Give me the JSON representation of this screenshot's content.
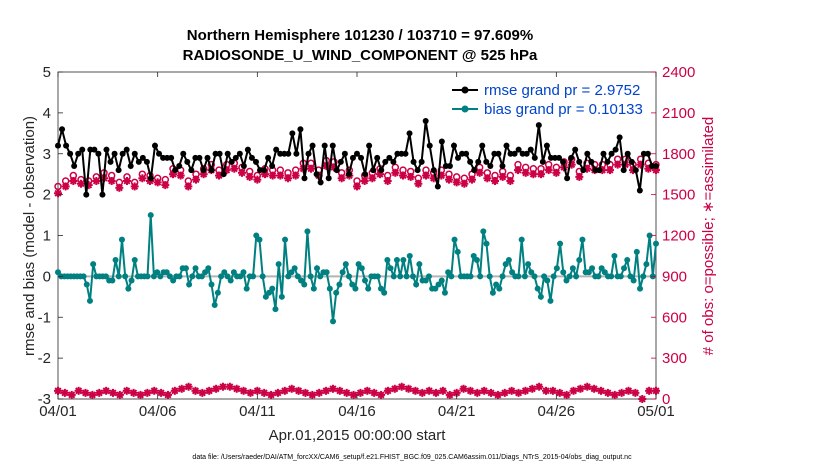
{
  "chart_data": {
    "type": "line",
    "title": "Northern Hemisphere 101230 / 103710 = 97.609%",
    "subtitle": "RADIOSONDE_U_WIND_COMPONENT @ 525 hPa",
    "xlabel": "Apr.01,2015 00:00:00 start",
    "ylabel": "rmse and bias (model - observation)",
    "ylabel_right": "# of obs: o=possible; ∗=assimilated",
    "footer": "data file: /Users/raeder/DAI/ATM_forcXX/CAM6_setup/f.e21.FHIST_BGC.f09_025.CAM6assim.011/Diags_NTrS_2015-04/obs_diag_output.nc",
    "x_ticks": [
      "04/01",
      "04/06",
      "04/11",
      "04/16",
      "04/21",
      "04/26",
      "05/01"
    ],
    "x_range_days": [
      0,
      30
    ],
    "ylim": [
      -3,
      5
    ],
    "y_ticks": [
      "-3",
      "-2",
      "-1",
      "0",
      "1",
      "2",
      "3",
      "4",
      "5"
    ],
    "ylim_right": [
      0,
      2400
    ],
    "y_ticks_right": [
      "0",
      "300",
      "600",
      "900",
      "1200",
      "1500",
      "1800",
      "2100",
      "2400"
    ],
    "grid": false,
    "legend_position": "top-right",
    "colors": {
      "rmse": "#000000",
      "bias": "#008080",
      "obs": "#cc0044",
      "zero_line": "#b3b3b3",
      "legend_text": "#0044cc"
    },
    "series": [
      {
        "name": "rmse",
        "legend": "rmse grand pr = 2.9752",
        "axis": "left",
        "values": [
          3.2,
          3.6,
          3.2,
          3.0,
          2.7,
          3.0,
          3.1,
          2.0,
          3.1,
          3.1,
          3.0,
          2.0,
          3.1,
          2.8,
          3.0,
          2.6,
          3.0,
          3.1,
          2.7,
          3.0,
          2.8,
          2.9,
          2.8,
          2.4,
          3.2,
          3.0,
          2.9,
          2.9,
          2.9,
          2.6,
          2.7,
          3.0,
          2.8,
          2.6,
          2.9,
          2.9,
          2.6,
          2.9,
          2.6,
          3.0,
          3.0,
          2.5,
          3.0,
          2.8,
          2.9,
          3.0,
          2.7,
          3.1,
          2.9,
          2.8,
          2.6,
          2.6,
          2.9,
          2.7,
          3.1,
          3.0,
          3.0,
          3.0,
          3.5,
          3.0,
          3.6,
          2.4,
          3.0,
          3.2,
          2.5,
          2.3,
          3.2,
          2.4,
          3.2,
          2.6,
          2.8,
          3.0,
          2.5,
          2.9,
          3.0,
          2.9,
          2.5,
          3.2,
          2.6,
          2.9,
          2.6,
          2.8,
          2.9,
          2.8,
          3.0,
          3.0,
          3.0,
          3.5,
          2.8,
          2.6,
          2.8,
          3.8,
          3.2,
          2.6,
          2.2,
          3.3,
          2.7,
          2.7,
          3.2,
          2.9,
          3.0,
          3.0,
          2.8,
          2.6,
          2.8,
          3.2,
          2.8,
          2.7,
          3.0,
          3.0,
          2.7,
          3.2,
          3.0,
          3.0,
          3.1,
          3.0,
          3.0,
          3.1,
          2.9,
          3.7,
          2.8,
          3.2,
          2.9,
          2.9,
          2.9,
          2.8,
          2.4,
          2.9,
          3.1,
          2.8,
          2.6,
          3.0,
          2.8,
          2.6,
          2.6,
          3.0,
          2.8,
          3.0,
          3.1,
          3.4,
          2.6,
          3.0,
          2.8,
          2.6,
          2.1,
          3.0,
          3.0,
          2.7,
          2.7
        ],
        "values_sparse": false
      },
      {
        "name": "bias",
        "legend": "bias grand pr = 0.10133",
        "axis": "left",
        "values": [
          0.1,
          0.0,
          0.0,
          0.0,
          0.0,
          0.0,
          0.0,
          0.0,
          0.0,
          -0.2,
          -0.6,
          0.3,
          0.0,
          0.0,
          0.0,
          0.0,
          -0.1,
          -0.1,
          0.4,
          0.0,
          0.9,
          0.0,
          -0.3,
          -0.1,
          0.4,
          0.0,
          0.0,
          0.0,
          0.0,
          1.5,
          0.0,
          0.1,
          0.0,
          0.1,
          0.1,
          0.0,
          -0.1,
          0.0,
          0.0,
          0.2,
          0.2,
          -0.2,
          0.0,
          0.2,
          0.0,
          0.0,
          0.1,
          0.2,
          -0.2,
          -0.7,
          -0.4,
          0.0,
          0.1,
          0.0,
          -0.1,
          0.1,
          0.0,
          0.0,
          0.1,
          -0.3,
          0.0,
          0.0,
          1.0,
          0.9,
          0.0,
          -0.5,
          -0.4,
          -0.3,
          -0.8,
          0.3,
          -0.5,
          0.9,
          0.0,
          0.1,
          0.2,
          0.0,
          -0.1,
          -0.2,
          1.1,
          0.0,
          -0.3,
          0.2,
          0.0,
          0.1,
          0.1,
          -0.3,
          -1.1,
          -0.4,
          -0.2,
          0.1,
          0.3,
          0.0,
          -0.2,
          -0.3,
          0.3,
          0.2,
          -0.1,
          -0.3,
          0.0,
          0.0,
          0.0,
          -0.3,
          -0.4,
          0.4,
          0.2,
          0.0,
          0.4,
          0.0,
          0.4,
          0.0,
          0.5,
          0.0,
          -0.2,
          0.3,
          -0.1,
          -0.1,
          0.0,
          -0.3,
          -0.3,
          -0.2,
          -0.1,
          -0.4,
          0.1,
          0.0,
          0.9,
          0.6,
          0.0,
          0.0,
          0.0,
          0.0,
          0.5,
          0.4,
          0.0,
          1.1,
          0.8,
          0.0,
          -0.4,
          -0.2,
          -0.3,
          0.0,
          0.3,
          0.4,
          0.1,
          0.0,
          0.0,
          0.9,
          0.0,
          0.3,
          0.1,
          0.0,
          -0.3,
          -0.5,
          0.0,
          -0.1,
          -0.6,
          0.0,
          0.2,
          0.8,
          0.1,
          -0.1,
          0.0,
          0.2,
          0.0,
          0.4,
          0.9,
          0.1,
          0.1,
          0.2,
          0.0,
          0.0,
          0.2,
          0.1,
          0.0,
          0.0,
          0.5,
          0.0,
          0.0,
          0.2,
          0.4,
          0.0,
          -0.1,
          0.6,
          -0.3,
          0.0,
          0.3,
          1.0,
          0.0,
          0.8
        ]
      },
      {
        "name": "possible",
        "axis": "right",
        "marker": "o",
        "values": [
          1560,
          1600,
          1640,
          1610,
          1600,
          1630,
          1660,
          1640,
          1590,
          1630,
          1590,
          1650,
          1640,
          1620,
          1610,
          1690,
          1680,
          1600,
          1650,
          1690,
          1720,
          1680,
          1720,
          1730,
          1700,
          1670,
          1640,
          1690,
          1680,
          1680,
          1660,
          1680,
          1730,
          1730,
          1680,
          1750,
          1740,
          1660,
          1680,
          1600,
          1640,
          1660,
          1690,
          1640,
          1700,
          1680,
          1670,
          1620,
          1680,
          1660,
          1680,
          1650,
          1630,
          1620,
          1650,
          1700,
          1660,
          1640,
          1670,
          1640,
          1720,
          1700,
          1690,
          1690,
          1720,
          1700,
          1740,
          1760,
          1670,
          1730,
          1720,
          1720,
          1720,
          1760,
          1760,
          1720,
          1760,
          1730,
          1720
        ]
      },
      {
        "name": "assimilated",
        "axis": "right",
        "marker": "*",
        "values": [
          1510,
          1560,
          1600,
          1580,
          1570,
          1600,
          1620,
          1600,
          1550,
          1600,
          1560,
          1620,
          1600,
          1590,
          1570,
          1650,
          1640,
          1560,
          1610,
          1650,
          1680,
          1640,
          1680,
          1690,
          1660,
          1630,
          1610,
          1650,
          1640,
          1640,
          1620,
          1640,
          1690,
          1690,
          1640,
          1710,
          1700,
          1620,
          1640,
          1560,
          1600,
          1620,
          1650,
          1600,
          1660,
          1640,
          1630,
          1580,
          1640,
          1620,
          1640,
          1610,
          1590,
          1580,
          1610,
          1660,
          1620,
          1600,
          1630,
          1600,
          1680,
          1660,
          1650,
          1650,
          1680,
          1660,
          1700,
          1720,
          1630,
          1690,
          1680,
          1680,
          1680,
          1720,
          1720,
          1680,
          1720,
          1690,
          1680
        ]
      },
      {
        "name": "possible_low",
        "axis": "left",
        "marker": "o",
        "values": [
          -2.8,
          -2.85,
          -2.9,
          -2.8,
          -2.85,
          -2.9,
          -2.85,
          -2.8,
          -2.85,
          -2.9,
          -2.8,
          -2.85,
          -2.9,
          -2.85,
          -2.8,
          -2.85,
          -2.9,
          -2.8,
          -2.75,
          -2.7,
          -2.8,
          -2.85,
          -2.8,
          -2.75,
          -2.7,
          -2.7,
          -2.75,
          -2.8,
          -2.85,
          -2.8,
          -2.85,
          -2.9,
          -2.85,
          -2.8,
          -2.75,
          -2.8,
          -2.85,
          -2.9,
          -2.85,
          -2.8,
          -2.75,
          -2.8,
          -2.85,
          -2.9,
          -2.85,
          -2.8,
          -2.85,
          -2.9,
          -2.8,
          -2.75,
          -2.7,
          -2.75,
          -2.8,
          -2.85,
          -2.8,
          -2.85,
          -2.8,
          -2.9,
          -2.85,
          -2.75,
          -2.8,
          -2.85,
          -2.8,
          -2.85,
          -2.9,
          -2.85,
          -2.8,
          -2.85,
          -2.8,
          -2.75,
          -2.7,
          -2.8,
          -2.8,
          -2.85,
          -2.9,
          -2.8,
          -2.75,
          -2.7,
          -2.75,
          -2.8,
          -2.85,
          -2.9,
          -2.85,
          -2.8,
          -2.85,
          -3.0,
          -2.8,
          -2.8
        ]
      }
    ]
  }
}
